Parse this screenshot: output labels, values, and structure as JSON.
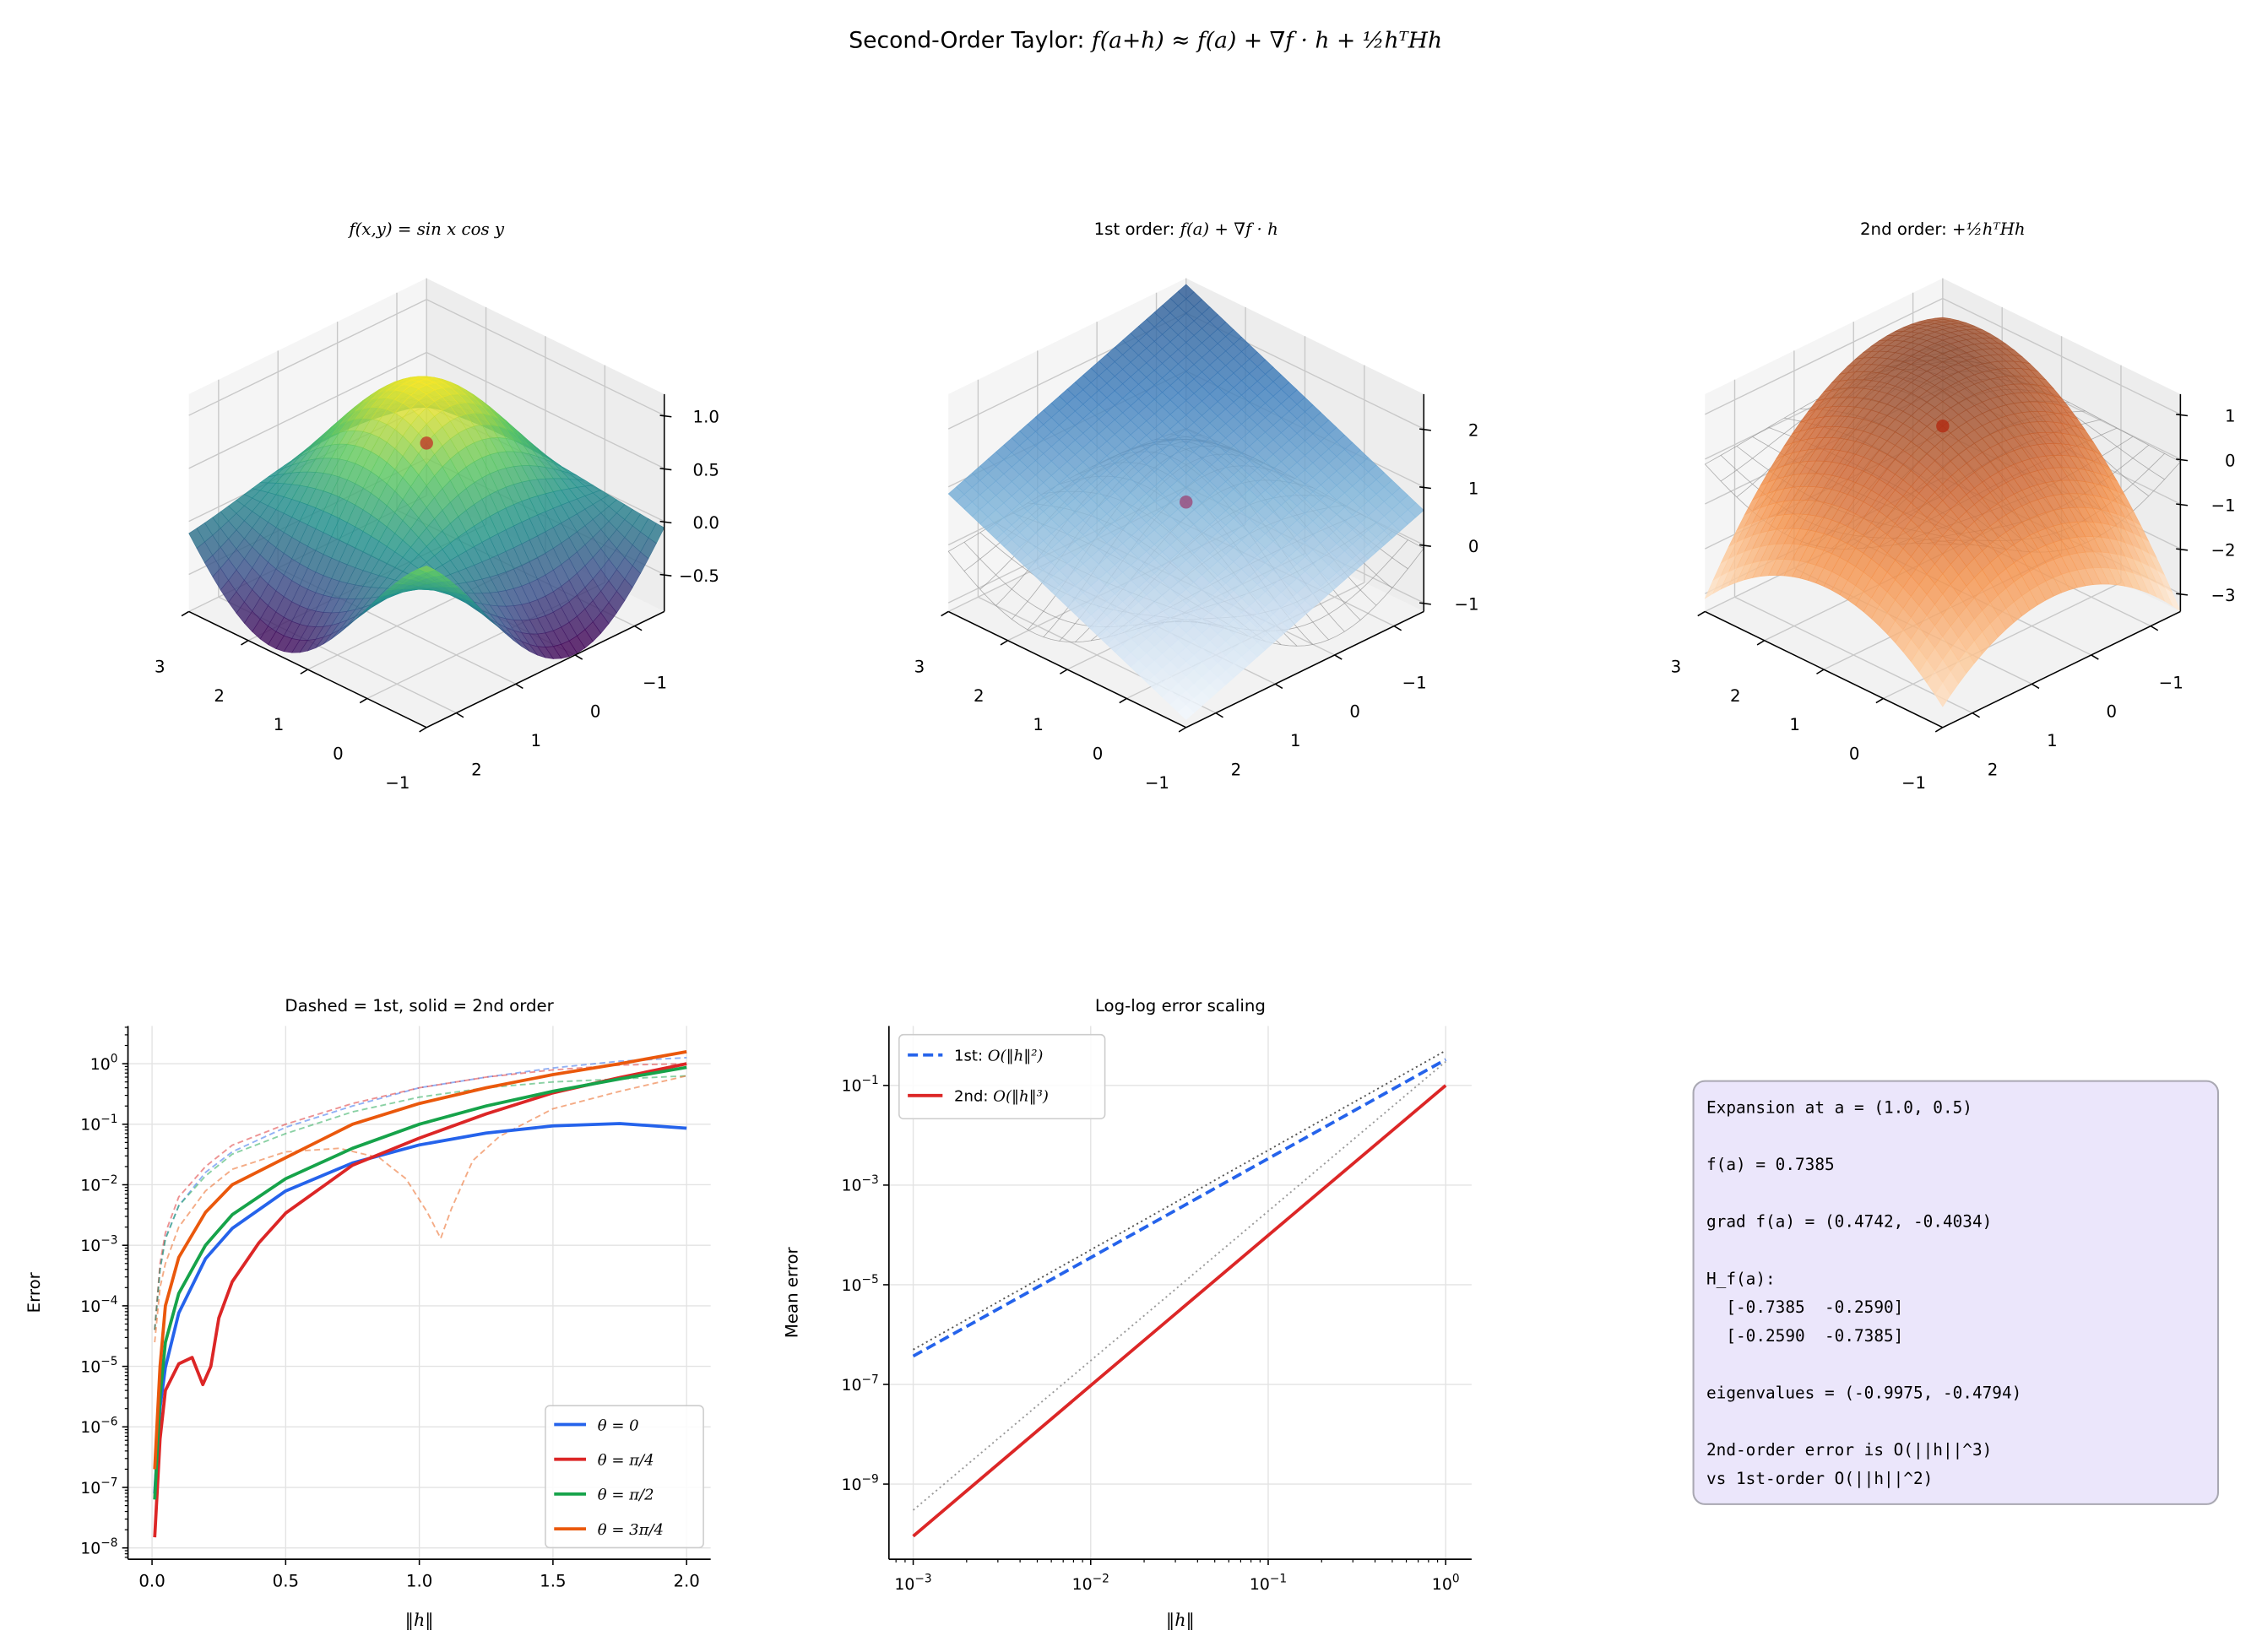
{
  "figure": {
    "title_prefix": "Second-Order Taylor: ",
    "title_math": "f(a+h) ≈ f(a) + ∇f · h + ½hᵀHh"
  },
  "expansion": {
    "a": [
      1.0,
      0.5
    ],
    "f_a": 0.7385,
    "grad": [
      0.4742,
      -0.4034
    ],
    "hessian": [
      [
        -0.7385,
        -0.259
      ],
      [
        -0.259,
        -0.7385
      ]
    ]
  },
  "chart_data": [
    {
      "type": "surface",
      "title_prefix": "",
      "title_math": "f(x,y) = sin x cos y",
      "surface": "f",
      "colormap": "viridis",
      "wireframe": false,
      "xlim": [
        -1,
        3
      ],
      "ylim": [
        -1.5,
        2.5
      ],
      "zlim": [
        -0.85,
        1.2
      ],
      "xticks": [
        -1,
        0,
        1,
        2,
        3
      ],
      "xticklabels": [
        "−1",
        "0",
        "1",
        "2",
        "3"
      ],
      "yticks": [
        -1,
        0,
        1,
        2
      ],
      "yticklabels": [
        "−1",
        "0",
        "1",
        "2"
      ],
      "zticks": [
        -0.5,
        0,
        0.5,
        1.0
      ],
      "zticklabels": [
        "−0.5",
        "0.0",
        "0.5",
        "1.0"
      ],
      "point_color": "#c0392b"
    },
    {
      "type": "surface",
      "title_prefix": "1st order: ",
      "title_math": "f(a) + ∇f · h",
      "surface": "linear",
      "colormap": "blues",
      "wireframe": true,
      "xlim": [
        -1,
        3
      ],
      "ylim": [
        -1.5,
        2.5
      ],
      "zlim": [
        -1.15,
        2.6
      ],
      "xticks": [
        -1,
        0,
        1,
        2,
        3
      ],
      "xticklabels": [
        "−1",
        "0",
        "1",
        "2",
        "3"
      ],
      "yticks": [
        -1,
        0,
        1,
        2
      ],
      "yticklabels": [
        "−1",
        "0",
        "1",
        "2"
      ],
      "zticks": [
        -1,
        0,
        1,
        2
      ],
      "zticklabels": [
        "−1",
        "0",
        "1",
        "2"
      ],
      "point_color": "#9b4a7a"
    },
    {
      "type": "surface",
      "title_prefix": "2nd order: ",
      "title_math": "+½hᵀHh",
      "surface": "quadratic",
      "colormap": "oranges",
      "wireframe": true,
      "xlim": [
        -1,
        3
      ],
      "ylim": [
        -1.5,
        2.5
      ],
      "zlim": [
        -3.4,
        1.45
      ],
      "xticks": [
        -1,
        0,
        1,
        2,
        3
      ],
      "xticklabels": [
        "−1",
        "0",
        "1",
        "2",
        "3"
      ],
      "yticks": [
        -1,
        0,
        1,
        2
      ],
      "yticklabels": [
        "−1",
        "0",
        "1",
        "2"
      ],
      "zticks": [
        -3,
        -2,
        -1,
        0,
        1
      ],
      "zticklabels": [
        "−3",
        "−2",
        "−1",
        "0",
        "1"
      ],
      "point_color": "#b22a12"
    },
    {
      "type": "line",
      "title": "Dashed = 1st, solid = 2nd order",
      "xlabel": "‖h‖",
      "ylabel": "Error",
      "xscale": "linear",
      "yscale": "log",
      "xlim": [
        -0.09,
        2.09
      ],
      "ylim": [
        6.5e-09,
        4.2
      ],
      "xticks": [
        0,
        0.5,
        1.0,
        1.5,
        2.0
      ],
      "xticklabels": [
        "0.0",
        "0.5",
        "1.0",
        "1.5",
        "2.0"
      ],
      "yticks_exp": [
        -8,
        -7,
        -6,
        -5,
        -4,
        -3,
        -2,
        -1,
        0
      ],
      "grid": true,
      "legend_position": "lower-right",
      "series": [
        {
          "name": "θ = 0 (1st)",
          "order": 1,
          "color": "#2563eb",
          "dashed": true,
          "legend": false,
          "x": [
            0.01,
            0.03,
            0.05,
            0.1,
            0.2,
            0.3,
            0.5,
            0.75,
            1.0,
            1.25,
            1.5,
            1.75,
            2.0
          ],
          "y": [
            4e-05,
            0.0004,
            0.0013,
            0.0045,
            0.016,
            0.035,
            0.089,
            0.2,
            0.4,
            0.6,
            0.85,
            1.1,
            1.26
          ]
        },
        {
          "name": "θ = π/4 (1st)",
          "order": 1,
          "color": "#dc2626",
          "dashed": true,
          "legend": false,
          "x": [
            0.01,
            0.03,
            0.05,
            0.1,
            0.2,
            0.3,
            0.5,
            0.75,
            1.0,
            1.25,
            1.5,
            1.75,
            2.0
          ],
          "y": [
            4e-05,
            0.0005,
            0.0016,
            0.0063,
            0.02,
            0.045,
            0.1,
            0.22,
            0.4,
            0.6,
            0.79,
            0.95,
            1.0
          ]
        },
        {
          "name": "θ = π/2 (1st)",
          "order": 1,
          "color": "#16a34a",
          "dashed": true,
          "legend": false,
          "x": [
            0.01,
            0.03,
            0.05,
            0.1,
            0.2,
            0.3,
            0.5,
            0.75,
            1.0,
            1.25,
            1.5,
            1.75,
            2.0
          ],
          "y": [
            4e-05,
            0.0004,
            0.00126,
            0.0045,
            0.014,
            0.032,
            0.07,
            0.16,
            0.28,
            0.4,
            0.5,
            0.56,
            0.63
          ]
        },
        {
          "name": "θ = 3π/4 (1st)",
          "order": 1,
          "color": "#ea580c",
          "dashed": true,
          "legend": false,
          "x": [
            0.01,
            0.03,
            0.05,
            0.1,
            0.2,
            0.3,
            0.5,
            0.7,
            0.85,
            0.95,
            1.03,
            1.08,
            1.12,
            1.2,
            1.3,
            1.5,
            1.75,
            2.0
          ],
          "y": [
            2.5e-05,
            0.0002,
            0.0005,
            0.002,
            0.0079,
            0.018,
            0.035,
            0.04,
            0.028,
            0.0126,
            0.0035,
            0.0013,
            0.004,
            0.025,
            0.063,
            0.18,
            0.35,
            0.63
          ]
        },
        {
          "name": "θ = 0",
          "label": "θ = 0",
          "order": 2,
          "color": "#2563eb",
          "dashed": false,
          "legend": true,
          "x": [
            0.01,
            0.03,
            0.05,
            0.1,
            0.2,
            0.3,
            0.5,
            0.75,
            1.0,
            1.25,
            1.5,
            1.75,
            2.0
          ],
          "y": [
            7.9e-08,
            2.1e-06,
            9.6e-06,
            7.6e-05,
            0.0006,
            0.0019,
            0.0079,
            0.0229,
            0.0455,
            0.0715,
            0.0938,
            0.1027,
            0.086
          ]
        },
        {
          "name": "θ = π/4",
          "label": "θ = π/4",
          "order": 2,
          "color": "#dc2626",
          "dashed": false,
          "legend": true,
          "x": [
            0.01,
            0.03,
            0.05,
            0.1,
            0.15,
            0.19,
            0.22,
            0.25,
            0.3,
            0.4,
            0.5,
            0.75,
            1.0,
            1.25,
            1.5,
            1.75,
            2.0
          ],
          "y": [
            1.5e-08,
            6.3e-07,
            4e-06,
            1.1e-05,
            1.4e-05,
            5e-06,
            1e-05,
            6.3e-05,
            0.00025,
            0.0011,
            0.0034,
            0.021,
            0.059,
            0.148,
            0.33,
            0.59,
            1.0
          ]
        },
        {
          "name": "θ = π/2",
          "label": "θ = π/2",
          "order": 2,
          "color": "#16a34a",
          "dashed": false,
          "legend": true,
          "x": [
            0.01,
            0.03,
            0.05,
            0.1,
            0.2,
            0.3,
            0.5,
            0.75,
            1.0,
            1.25,
            1.5,
            1.75,
            2.0
          ],
          "y": [
            6.3e-08,
            3.2e-06,
            2.5e-05,
            0.00016,
            0.001,
            0.0032,
            0.0126,
            0.04,
            0.1,
            0.2,
            0.35,
            0.56,
            0.87
          ]
        },
        {
          "name": "θ = 3π/4",
          "label": "θ = 3π/4",
          "order": 2,
          "color": "#ea580c",
          "dashed": false,
          "legend": true,
          "x": [
            0.01,
            0.03,
            0.05,
            0.1,
            0.2,
            0.3,
            0.5,
            0.75,
            1.0,
            1.25,
            1.5,
            1.75,
            2.0
          ],
          "y": [
            2e-07,
            1e-05,
            0.0001,
            0.00063,
            0.0035,
            0.01,
            0.028,
            0.1,
            0.22,
            0.4,
            0.66,
            1.0,
            1.58
          ]
        }
      ]
    },
    {
      "type": "line",
      "title": "Log-log error scaling",
      "xlabel": "‖h‖",
      "ylabel": "Mean error",
      "xscale": "log",
      "yscale": "log",
      "xlim": [
        0.00073,
        1.4
      ],
      "ylim": [
        3.1e-11,
        1.56
      ],
      "xticks_exp": [
        -3,
        -2,
        -1,
        0
      ],
      "yticks_exp": [
        -9,
        -7,
        -5,
        -3,
        -1
      ],
      "grid": true,
      "legend_position": "upper-left",
      "series": [
        {
          "name": "reference h^2",
          "color": "#555555",
          "dotted": true,
          "legend": false,
          "x": [
            0.001,
            0.01,
            0.1,
            1
          ],
          "y": [
            5e-07,
            5e-05,
            0.005,
            0.5
          ]
        },
        {
          "name": "reference h^3",
          "color": "#9a9a9a",
          "dotted": true,
          "legend": false,
          "x": [
            0.001,
            0.01,
            0.1,
            1
          ],
          "y": [
            3e-10,
            3e-07,
            0.0003,
            0.3
          ]
        },
        {
          "name": "1st",
          "label_prefix": "1st: ",
          "label_math": "O(‖h‖²)",
          "color": "#2563eb",
          "dashed": true,
          "legend": true,
          "x": [
            0.001,
            0.01,
            0.1,
            1
          ],
          "y": [
            3.7e-07,
            3.5e-05,
            0.0034,
            0.33
          ]
        },
        {
          "name": "2nd",
          "label_prefix": "2nd: ",
          "label_math": "O(‖h‖³)",
          "color": "#dc2626",
          "dashed": false,
          "legend": true,
          "x": [
            0.001,
            0.01,
            0.1,
            1
          ],
          "y": [
            9e-11,
            9.5e-08,
            9.8e-05,
            0.1
          ]
        }
      ]
    }
  ],
  "info_box": {
    "lines": [
      "Expansion at a = (1.0, 0.5)",
      "",
      "f(a) = 0.7385",
      "",
      "grad f(a) = (0.4742, -0.4034)",
      "",
      "H_f(a):",
      "  [-0.7385  -0.2590]",
      "  [-0.2590  -0.7385]",
      "",
      "eigenvalues = (-0.9975, -0.4794)",
      "",
      "2nd-order error is O(||h||^3)",
      "vs 1st-order O(||h||^2)"
    ],
    "fill": "#ebe6fb",
    "border": "#a9a8b2"
  }
}
